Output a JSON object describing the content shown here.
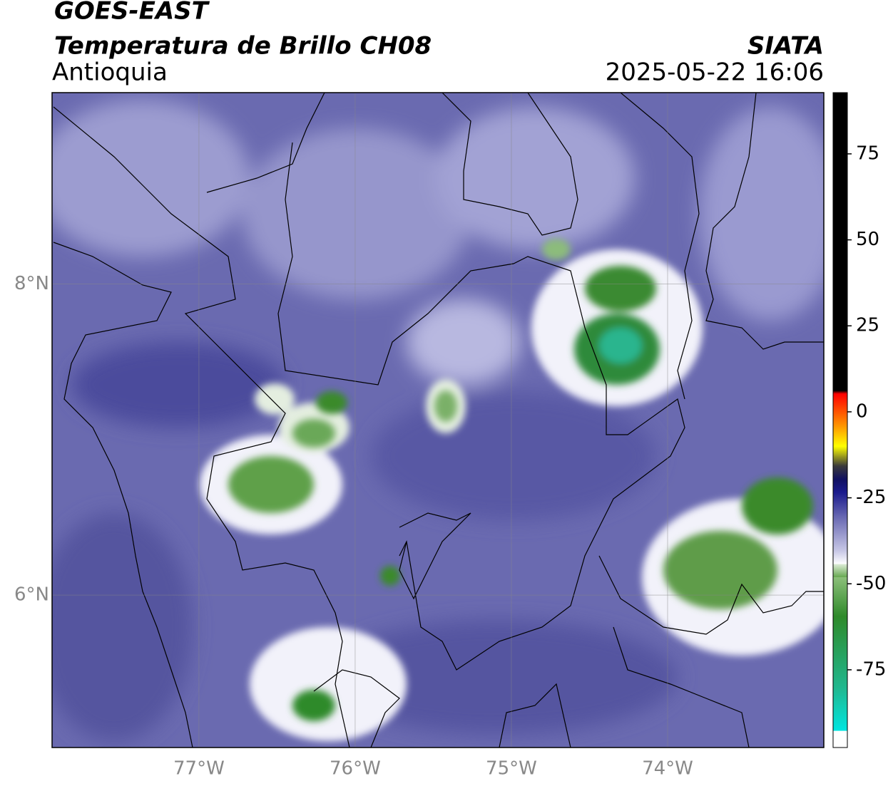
{
  "header": {
    "title": "GOES-EAST",
    "subtitle": "Temperatura de Brillo CH08",
    "region": "Antioquia",
    "source": "SIATA",
    "datetime": "2025-05-22 16:06"
  },
  "map": {
    "lonlim": [
      -77.94,
      -73.0
    ],
    "latlim": [
      5.02,
      9.23
    ],
    "xticks": [
      {
        "value": -77,
        "label": "77°W"
      },
      {
        "value": -76,
        "label": "76°W"
      },
      {
        "value": -75,
        "label": "75°W"
      },
      {
        "value": -74,
        "label": "74°W"
      }
    ],
    "yticks": [
      {
        "value": 6,
        "label": "6°N"
      },
      {
        "value": 8,
        "label": "8°N"
      }
    ],
    "colorbar": {
      "lim": [
        -97.6,
        92.8
      ],
      "ticks": [
        -75,
        -50,
        -25,
        0,
        25,
        50,
        75
      ]
    }
  }
}
